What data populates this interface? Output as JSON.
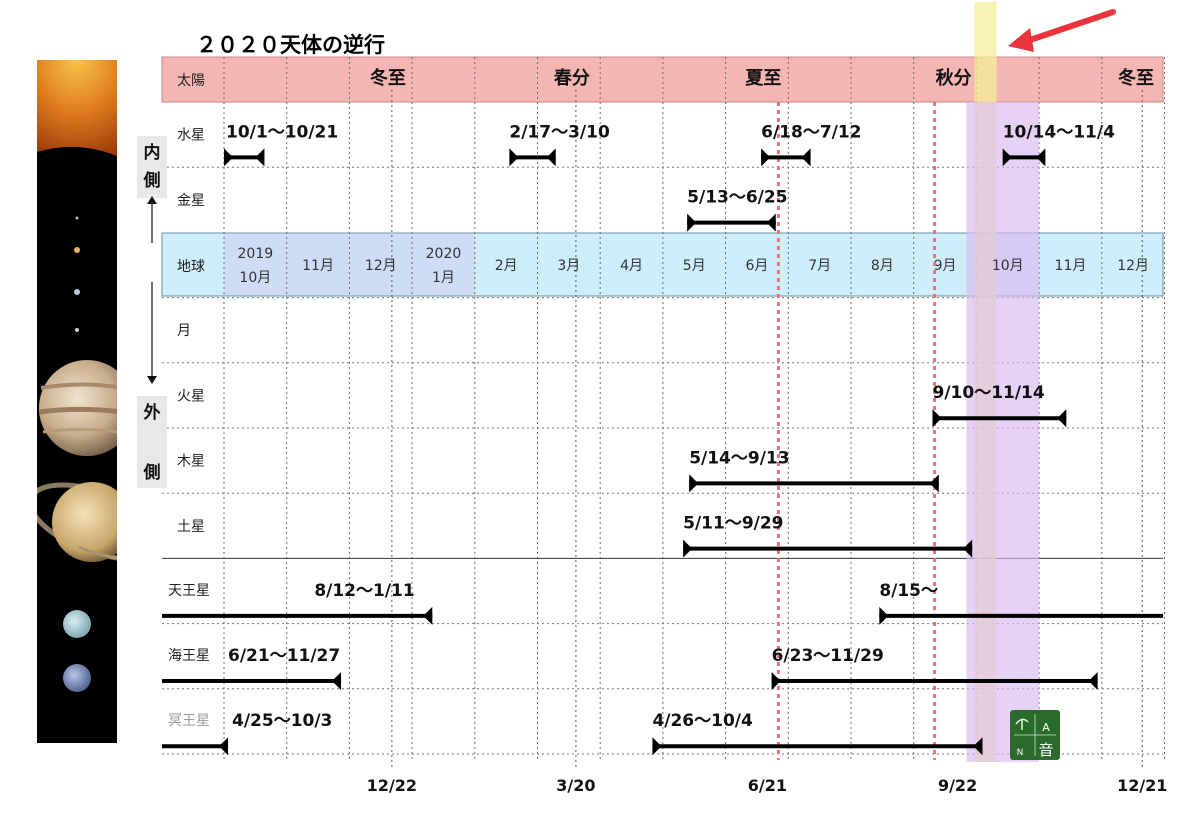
{
  "title": "２０２０天体の逆行",
  "chart_data": {
    "type": "timeline",
    "title": "２０２０天体の逆行",
    "rows": [
      {
        "key": "sun",
        "label": "太陽"
      },
      {
        "key": "mercury",
        "label": "水星"
      },
      {
        "key": "venus",
        "label": "金星"
      },
      {
        "key": "earth",
        "label": "地球"
      },
      {
        "key": "moon",
        "label": "月"
      },
      {
        "key": "mars",
        "label": "火星"
      },
      {
        "key": "jupiter",
        "label": "木星"
      },
      {
        "key": "saturn",
        "label": "土星"
      },
      {
        "key": "uranus",
        "label": "天王星"
      },
      {
        "key": "neptune",
        "label": "海王星"
      },
      {
        "key": "pluto",
        "label": "冥王星"
      }
    ],
    "months": [
      {
        "line1": "2019",
        "line2": "10月"
      },
      {
        "line1": "11月",
        "line2": ""
      },
      {
        "line1": "12月",
        "line2": ""
      },
      {
        "line1": "2020",
        "line2": "1月"
      },
      {
        "line1": "2月",
        "line2": ""
      },
      {
        "line1": "3月",
        "line2": ""
      },
      {
        "line1": "4月",
        "line2": ""
      },
      {
        "line1": "5月",
        "line2": ""
      },
      {
        "line1": "6月",
        "line2": ""
      },
      {
        "line1": "7月",
        "line2": ""
      },
      {
        "line1": "8月",
        "line2": ""
      },
      {
        "line1": "9月",
        "line2": ""
      },
      {
        "line1": "10月",
        "line2": ""
      },
      {
        "line1": "11月",
        "line2": ""
      },
      {
        "line1": "12月",
        "line2": ""
      }
    ],
    "seasons": [
      {
        "label": "冬至",
        "date": "2019-12-22",
        "bottom_label": "12/22"
      },
      {
        "label": "春分",
        "date": "2020-03-20",
        "bottom_label": "3/20"
      },
      {
        "label": "夏至",
        "date": "2020-06-21",
        "bottom_label": "6/21"
      },
      {
        "label": "秋分",
        "date": "2020-09-22",
        "bottom_label": "9/22"
      },
      {
        "label": "冬至",
        "date": "2020-12-21",
        "bottom_label": "12/21"
      }
    ],
    "retrogrades": [
      {
        "row": "mercury",
        "label": "10/1〜10/21",
        "start": "2019-10-01",
        "end": "2019-10-21"
      },
      {
        "row": "mercury",
        "label": "2/17〜3/10",
        "start": "2020-02-17",
        "end": "2020-03-10"
      },
      {
        "row": "mercury",
        "label": "6/18〜7/12",
        "start": "2020-06-18",
        "end": "2020-07-12"
      },
      {
        "row": "mercury",
        "label": "10/14〜11/4",
        "start": "2020-10-14",
        "end": "2020-11-04"
      },
      {
        "row": "venus",
        "label": "5/13〜6/25",
        "start": "2020-05-13",
        "end": "2020-06-25"
      },
      {
        "row": "mars",
        "label": "9/10〜11/14",
        "start": "2020-09-10",
        "end": "2020-11-14"
      },
      {
        "row": "jupiter",
        "label": "5/14〜9/13",
        "start": "2020-05-14",
        "end": "2020-09-13"
      },
      {
        "row": "saturn",
        "label": "5/11〜9/29",
        "start": "2020-05-11",
        "end": "2020-09-29"
      },
      {
        "row": "uranus",
        "label": "8/12〜1/11",
        "start": "2019-08-12",
        "end": "2020-01-11"
      },
      {
        "row": "uranus",
        "label": "8/15〜",
        "start": "2020-08-15",
        "end": ""
      },
      {
        "row": "neptune",
        "label": "6/21〜11/27",
        "start": "2019-06-21",
        "end": "2019-11-27"
      },
      {
        "row": "neptune",
        "label": "6/23〜11/29",
        "start": "2020-06-23",
        "end": "2020-11-29"
      },
      {
        "row": "pluto",
        "label": "4/25〜10/3",
        "start": "2019-04-25",
        "end": "2019-10-03"
      },
      {
        "row": "pluto",
        "label": "4/26〜10/4",
        "start": "2020-04-26",
        "end": "2020-10-04"
      }
    ],
    "highlights": [
      {
        "date": "2020-10-10",
        "color": "#f5ee9c",
        "kind": "current"
      },
      {
        "start": "2020-10-01",
        "end": "2020-10-31",
        "color": "#d9b8f2",
        "kind": "month"
      }
    ],
    "side_labels": {
      "inner": [
        "内",
        "側"
      ],
      "outer": [
        "外",
        "側"
      ]
    },
    "logo_text": [
      "A",
      "N",
      "音"
    ],
    "colors": {
      "sun_band": "#f4b6b3",
      "earth_band": "#cdeefa",
      "earth_dark": "#cfd9f7",
      "bar": "#000000",
      "solstice": "#e87575",
      "arrow": "#e8343a",
      "logo": "#2a6a2a"
    }
  }
}
